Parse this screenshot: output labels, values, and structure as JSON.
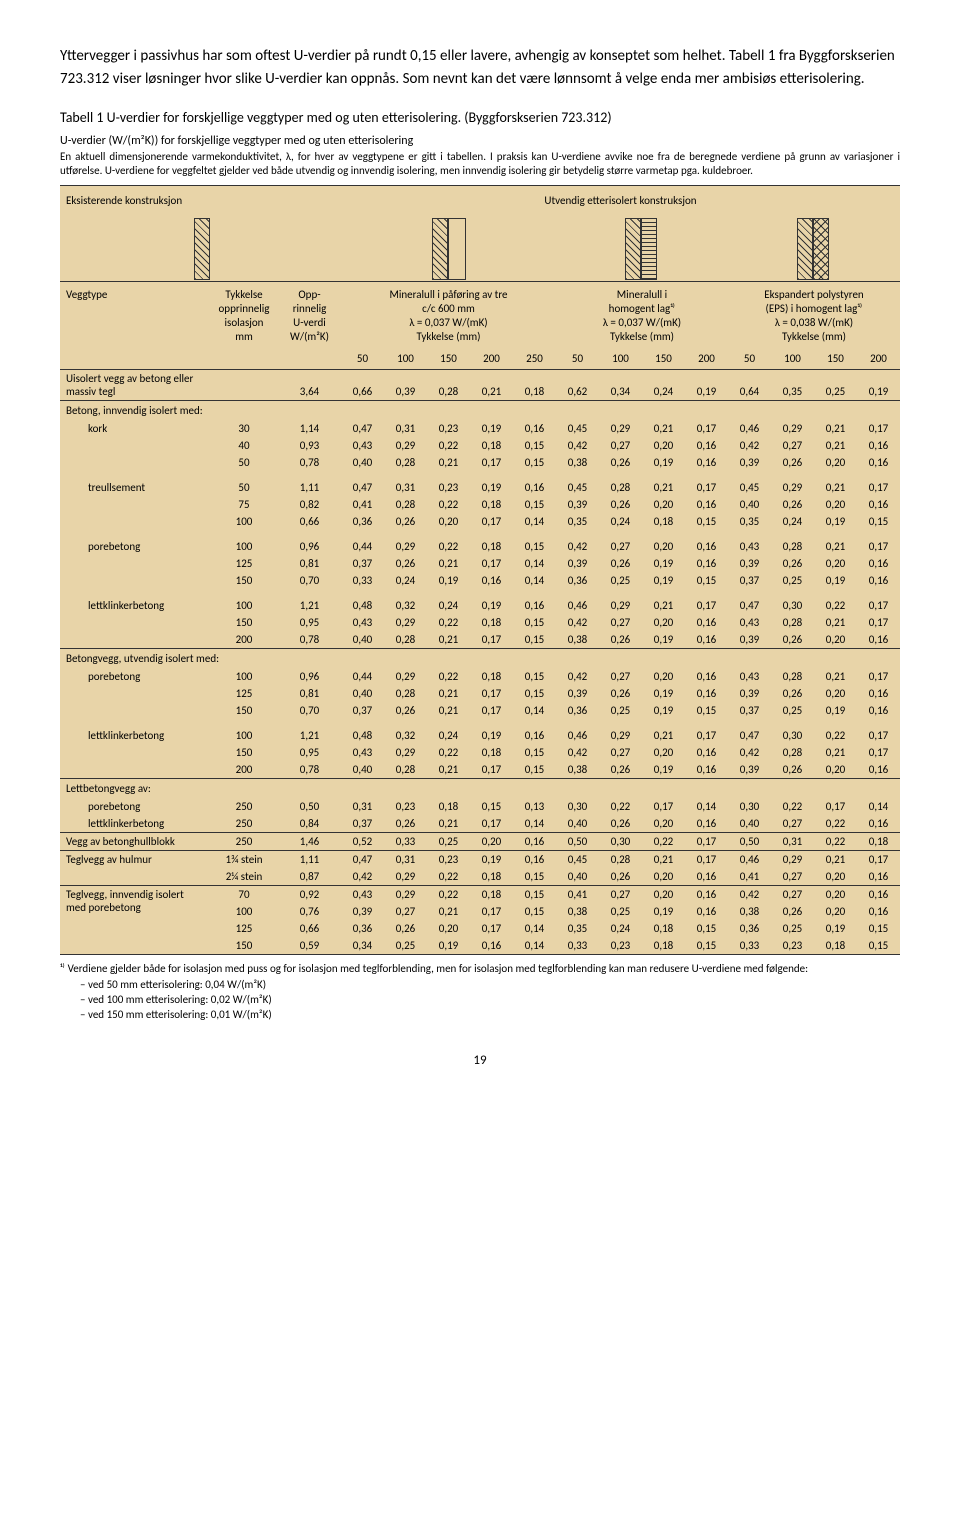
{
  "intro": "Yttervegger i passivhus har som oftest U-verdier på rundt 0,15 eller lavere, avhengig av konseptet som helhet. Tabell 1 fra Byggforskserien 723.312 viser løsninger hvor slike U-verdier kan oppnås. Som nevnt kan det være lønnsomt å velge enda mer ambisiøs etterisolering.",
  "caption_num": "Tabell 1",
  "caption_txt": " U-verdier for forskjellige veggtyper med og uten etterisolering. (Byggforskserien 723.312)",
  "table_title": "U-verdier (W/(m²K)) for forskjellige veggtyper med og uten etterisolering",
  "table_intro": "En aktuell dimensjonerende varmekonduktivitet, λ, for hver av veggtypene er gitt i tabellen. I praksis kan U-verdiene avvike noe fra de beregnede verdiene på grunn av variasjoner i utførelse. U-verdiene for veggfeltet gjelder ved både utvendig og innvendig isolering, men innvendig isolering gir betydelig større varmetap pga. kuldebroer.",
  "group1": "Eksisterende konstruksjon",
  "group2": "Utvendig etterisolert konstruksjon",
  "col_veggtype": "Veggtype",
  "col_tykkelse": "Tykkelse\nopprinnelig\nisolasjon\nmm",
  "col_opp": "Opp-\nrinnelig\nU-verdi\nW/(m²K)",
  "col_min": "Mineralull i påføring av tre\nc/c 600 mm\nλ = 0,037 W/(mK)\nTykkelse (mm)",
  "col_hom": "Mineralull i\nhomogent lag¹⁾\nλ = 0,037 W/(mK)\nTykkelse (mm)",
  "col_eps": "Ekspandert polystyren\n(EPS) i homogent lag¹⁾\nλ = 0,038 W/(mK)\nTykkelse (mm)",
  "sub": [
    "50",
    "100",
    "150",
    "200",
    "250",
    "50",
    "100",
    "150",
    "200",
    "50",
    "100",
    "150",
    "200"
  ],
  "rows": [
    {
      "label": "Uisolert vegg av betong eller massiv tegl",
      "indent": false,
      "t": "",
      "u": "3,64",
      "v": [
        "0,66",
        "0,39",
        "0,28",
        "0,21",
        "0,18",
        "0,62",
        "0,34",
        "0,24",
        "0,19",
        "0,64",
        "0,35",
        "0,25",
        "0,19"
      ]
    }
  ],
  "sec2": "Betong, innvendig isolert med:",
  "rows2": [
    {
      "label": "kork",
      "indent": true,
      "t": "30",
      "u": "1,14",
      "v": [
        "0,47",
        "0,31",
        "0,23",
        "0,19",
        "0,16",
        "0,45",
        "0,29",
        "0,21",
        "0,17",
        "0,46",
        "0,29",
        "0,21",
        "0,17"
      ]
    },
    {
      "label": "",
      "indent": true,
      "t": "40",
      "u": "0,93",
      "v": [
        "0,43",
        "0,29",
        "0,22",
        "0,18",
        "0,15",
        "0,42",
        "0,27",
        "0,20",
        "0,16",
        "0,42",
        "0,27",
        "0,21",
        "0,16"
      ]
    },
    {
      "label": "",
      "indent": true,
      "t": "50",
      "u": "0,78",
      "v": [
        "0,40",
        "0,28",
        "0,21",
        "0,17",
        "0,15",
        "0,38",
        "0,26",
        "0,19",
        "0,16",
        "0,39",
        "0,26",
        "0,20",
        "0,16"
      ]
    },
    {
      "label": "treullsement",
      "indent": true,
      "top": true,
      "t": "50",
      "u": "1,11",
      "v": [
        "0,47",
        "0,31",
        "0,23",
        "0,19",
        "0,16",
        "0,45",
        "0,28",
        "0,21",
        "0,17",
        "0,45",
        "0,29",
        "0,21",
        "0,17"
      ]
    },
    {
      "label": "",
      "indent": true,
      "t": "75",
      "u": "0,82",
      "v": [
        "0,41",
        "0,28",
        "0,22",
        "0,18",
        "0,15",
        "0,39",
        "0,26",
        "0,20",
        "0,16",
        "0,40",
        "0,26",
        "0,20",
        "0,16"
      ]
    },
    {
      "label": "",
      "indent": true,
      "t": "100",
      "u": "0,66",
      "v": [
        "0,36",
        "0,26",
        "0,20",
        "0,17",
        "0,14",
        "0,35",
        "0,24",
        "0,18",
        "0,15",
        "0,35",
        "0,24",
        "0,19",
        "0,15"
      ]
    },
    {
      "label": "porebetong",
      "indent": true,
      "top": true,
      "t": "100",
      "u": "0,96",
      "v": [
        "0,44",
        "0,29",
        "0,22",
        "0,18",
        "0,15",
        "0,42",
        "0,27",
        "0,20",
        "0,16",
        "0,43",
        "0,28",
        "0,21",
        "0,17"
      ]
    },
    {
      "label": "",
      "indent": true,
      "t": "125",
      "u": "0,81",
      "v": [
        "0,37",
        "0,26",
        "0,21",
        "0,17",
        "0,14",
        "0,39",
        "0,26",
        "0,19",
        "0,16",
        "0,39",
        "0,26",
        "0,20",
        "0,16"
      ]
    },
    {
      "label": "",
      "indent": true,
      "t": "150",
      "u": "0,70",
      "v": [
        "0,33",
        "0,24",
        "0,19",
        "0,16",
        "0,14",
        "0,36",
        "0,25",
        "0,19",
        "0,15",
        "0,37",
        "0,25",
        "0,19",
        "0,16"
      ]
    },
    {
      "label": "lettklinkerbetong",
      "indent": true,
      "top": true,
      "t": "100",
      "u": "1,21",
      "v": [
        "0,48",
        "0,32",
        "0,24",
        "0,19",
        "0,16",
        "0,46",
        "0,29",
        "0,21",
        "0,17",
        "0,47",
        "0,30",
        "0,22",
        "0,17"
      ]
    },
    {
      "label": "",
      "indent": true,
      "t": "150",
      "u": "0,95",
      "v": [
        "0,43",
        "0,29",
        "0,22",
        "0,18",
        "0,15",
        "0,42",
        "0,27",
        "0,20",
        "0,16",
        "0,43",
        "0,28",
        "0,21",
        "0,17"
      ]
    },
    {
      "label": "",
      "indent": true,
      "t": "200",
      "u": "0,78",
      "v": [
        "0,40",
        "0,28",
        "0,21",
        "0,17",
        "0,15",
        "0,38",
        "0,26",
        "0,19",
        "0,16",
        "0,39",
        "0,26",
        "0,20",
        "0,16"
      ]
    }
  ],
  "sec3": "Betongvegg, utvendig isolert med:",
  "rows3": [
    {
      "label": "porebetong",
      "indent": true,
      "t": "100",
      "u": "0,96",
      "v": [
        "0,44",
        "0,29",
        "0,22",
        "0,18",
        "0,15",
        "0,42",
        "0,27",
        "0,20",
        "0,16",
        "0,43",
        "0,28",
        "0,21",
        "0,17"
      ]
    },
    {
      "label": "",
      "indent": true,
      "t": "125",
      "u": "0,81",
      "v": [
        "0,40",
        "0,28",
        "0,21",
        "0,17",
        "0,15",
        "0,39",
        "0,26",
        "0,19",
        "0,16",
        "0,39",
        "0,26",
        "0,20",
        "0,16"
      ]
    },
    {
      "label": "",
      "indent": true,
      "t": "150",
      "u": "0,70",
      "v": [
        "0,37",
        "0,26",
        "0,21",
        "0,17",
        "0,14",
        "0,36",
        "0,25",
        "0,19",
        "0,15",
        "0,37",
        "0,25",
        "0,19",
        "0,16"
      ]
    },
    {
      "label": "lettklinkerbetong",
      "indent": true,
      "top": true,
      "t": "100",
      "u": "1,21",
      "v": [
        "0,48",
        "0,32",
        "0,24",
        "0,19",
        "0,16",
        "0,46",
        "0,29",
        "0,21",
        "0,17",
        "0,47",
        "0,30",
        "0,22",
        "0,17"
      ]
    },
    {
      "label": "",
      "indent": true,
      "t": "150",
      "u": "0,95",
      "v": [
        "0,43",
        "0,29",
        "0,22",
        "0,18",
        "0,15",
        "0,42",
        "0,27",
        "0,20",
        "0,16",
        "0,42",
        "0,28",
        "0,21",
        "0,17"
      ]
    },
    {
      "label": "",
      "indent": true,
      "t": "200",
      "u": "0,78",
      "v": [
        "0,40",
        "0,28",
        "0,21",
        "0,17",
        "0,15",
        "0,38",
        "0,26",
        "0,19",
        "0,16",
        "0,39",
        "0,26",
        "0,20",
        "0,16"
      ]
    }
  ],
  "sec4": "Lettbetongvegg av:",
  "rows4": [
    {
      "label": "porebetong",
      "indent": true,
      "t": "250",
      "u": "0,50",
      "v": [
        "0,31",
        "0,23",
        "0,18",
        "0,15",
        "0,13",
        "0,30",
        "0,22",
        "0,17",
        "0,14",
        "0,30",
        "0,22",
        "0,17",
        "0,14"
      ]
    },
    {
      "label": "lettklinkerbetong",
      "indent": true,
      "t": "250",
      "u": "0,84",
      "v": [
        "0,37",
        "0,26",
        "0,21",
        "0,17",
        "0,14",
        "0,40",
        "0,26",
        "0,20",
        "0,16",
        "0,40",
        "0,27",
        "0,22",
        "0,16"
      ]
    }
  ],
  "row_hull": {
    "label": "Vegg av betonghullblokk",
    "t": "250",
    "u": "1,46",
    "v": [
      "0,52",
      "0,33",
      "0,25",
      "0,20",
      "0,16",
      "0,50",
      "0,30",
      "0,22",
      "0,17",
      "0,50",
      "0,31",
      "0,22",
      "0,18"
    ]
  },
  "sec5": "Teglvegg av hulmur",
  "rows5": [
    {
      "label": "",
      "t": "1¾ stein",
      "u": "1,11",
      "v": [
        "0,47",
        "0,31",
        "0,23",
        "0,19",
        "0,16",
        "0,45",
        "0,28",
        "0,21",
        "0,17",
        "0,46",
        "0,29",
        "0,21",
        "0,17"
      ]
    },
    {
      "label": "",
      "t": "2¼ stein",
      "u": "0,87",
      "v": [
        "0,42",
        "0,29",
        "0,22",
        "0,18",
        "0,15",
        "0,40",
        "0,26",
        "0,20",
        "0,16",
        "0,41",
        "0,27",
        "0,20",
        "0,16"
      ]
    }
  ],
  "sec6": "Teglvegg, innvendig isolert med porebetong",
  "rows6": [
    {
      "label": "",
      "t": "70",
      "u": "0,92",
      "v": [
        "0,43",
        "0,29",
        "0,22",
        "0,18",
        "0,15",
        "0,41",
        "0,27",
        "0,20",
        "0,16",
        "0,42",
        "0,27",
        "0,20",
        "0,16"
      ]
    },
    {
      "label": "",
      "t": "100",
      "u": "0,76",
      "v": [
        "0,39",
        "0,27",
        "0,21",
        "0,17",
        "0,15",
        "0,38",
        "0,25",
        "0,19",
        "0,16",
        "0,38",
        "0,26",
        "0,20",
        "0,16"
      ]
    },
    {
      "label": "",
      "t": "125",
      "u": "0,66",
      "v": [
        "0,36",
        "0,26",
        "0,20",
        "0,17",
        "0,14",
        "0,35",
        "0,24",
        "0,18",
        "0,15",
        "0,36",
        "0,25",
        "0,19",
        "0,15"
      ]
    },
    {
      "label": "",
      "t": "150",
      "u": "0,59",
      "v": [
        "0,34",
        "0,25",
        "0,19",
        "0,16",
        "0,14",
        "0,33",
        "0,23",
        "0,18",
        "0,15",
        "0,33",
        "0,23",
        "0,18",
        "0,15"
      ]
    }
  ],
  "footnote1": "¹⁾ Verdiene gjelder både for isolasjon med puss og for isolasjon med teglforblending, men for isolasjon med teglforblending kan man redusere U-verdiene med følgende:",
  "footnote_sub": [
    "– ved 50 mm etterisolering: 0,04 W/(m²K)",
    "– ved 100 mm etterisolering: 0,02 W/(m²K)",
    "– ved 150 mm etterisolering: 0,01 W/(m²K)"
  ],
  "page_num": "19"
}
